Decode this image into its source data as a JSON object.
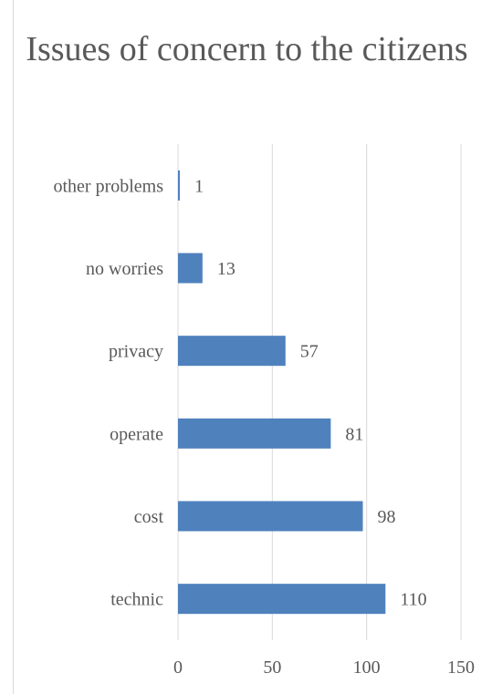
{
  "chart_data": {
    "type": "bar",
    "orientation": "horizontal",
    "title": "Issues of concern to the citizens",
    "xlabel": "",
    "ylabel": "",
    "categories": [
      "technic",
      "cost",
      "operate",
      "privacy",
      "no worries",
      "other problems"
    ],
    "values": [
      110,
      98,
      81,
      57,
      13,
      1
    ],
    "xlim": [
      0,
      150
    ],
    "xticks": [
      "0",
      "50",
      "100",
      "150"
    ],
    "grid": "vertical",
    "legend": "none",
    "bar_color": "#4f81bd",
    "grid_color": "#d9d9d9",
    "text_color": "#595959"
  }
}
